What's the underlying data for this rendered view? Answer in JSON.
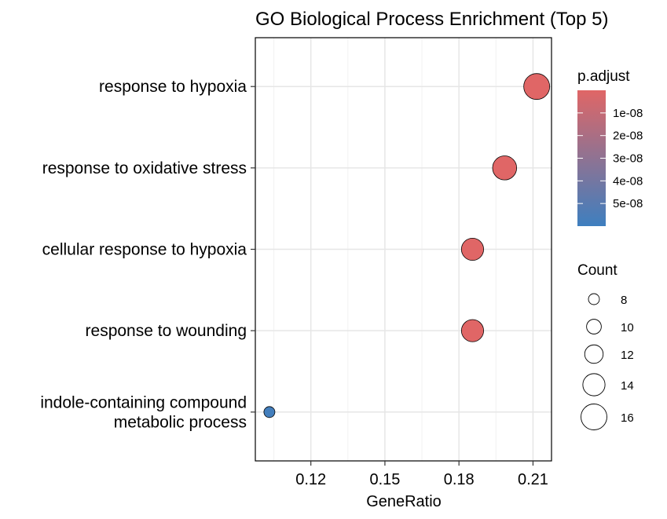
{
  "chart_data": {
    "type": "scatter",
    "title": "GO Biological Process Enrichment (Top 5)",
    "xlabel": "GeneRatio",
    "ylabel": "",
    "xlim": [
      0.0975,
      0.2175
    ],
    "xticks": [
      0.12,
      0.15,
      0.18,
      0.21
    ],
    "x_tick_labels": [
      "0.12",
      "0.15",
      "0.18",
      "0.21"
    ],
    "grid": true,
    "categories": [
      "response to hypoxia",
      "response to oxidative stress",
      "cellular response to hypoxia",
      "response to wounding",
      "indole-containing compound\nmetabolic process"
    ],
    "points": [
      {
        "term": "response to hypoxia",
        "gene_ratio": 0.2115,
        "count": 16,
        "p_adjust": 1e-10
      },
      {
        "term": "response to oxidative stress",
        "gene_ratio": 0.1985,
        "count": 15,
        "p_adjust": 1e-10
      },
      {
        "term": "cellular response to hypoxia",
        "gene_ratio": 0.1855,
        "count": 14,
        "p_adjust": 1e-10
      },
      {
        "term": "response to wounding",
        "gene_ratio": 0.1855,
        "count": 14,
        "p_adjust": 1e-10
      },
      {
        "term": "indole-containing compound\nmetabolic process",
        "gene_ratio": 0.1032,
        "count": 8,
        "p_adjust": 5.8e-08
      }
    ],
    "color_legend": {
      "title": "p.adjust",
      "low_color": "#E06666",
      "high_color": "#3E7FBF",
      "min": 0,
      "max": 6e-08,
      "ticks": [
        1e-08,
        2e-08,
        3e-08,
        4e-08,
        5e-08
      ],
      "tick_labels": [
        "1e-08",
        "2e-08",
        "3e-08",
        "4e-08",
        "5e-08"
      ]
    },
    "size_legend": {
      "title": "Count",
      "values": [
        8,
        10,
        12,
        14,
        16
      ],
      "labels": [
        "8",
        "10",
        "12",
        "14",
        "16"
      ]
    },
    "legend_position": "right"
  }
}
